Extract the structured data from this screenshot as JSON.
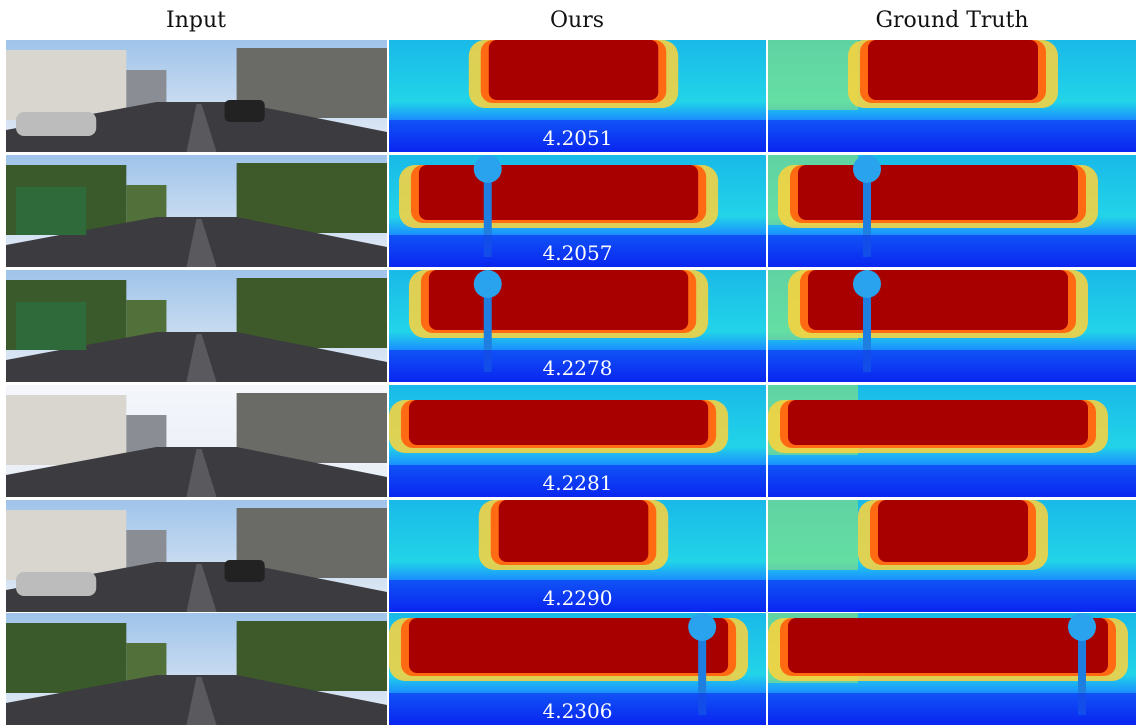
{
  "headers": [
    "Input",
    "Ours",
    "Ground Truth"
  ],
  "scores": [
    "4.2051",
    "4.2057",
    "4.2278",
    "4.2281",
    "4.2290",
    "4.2306"
  ]
}
